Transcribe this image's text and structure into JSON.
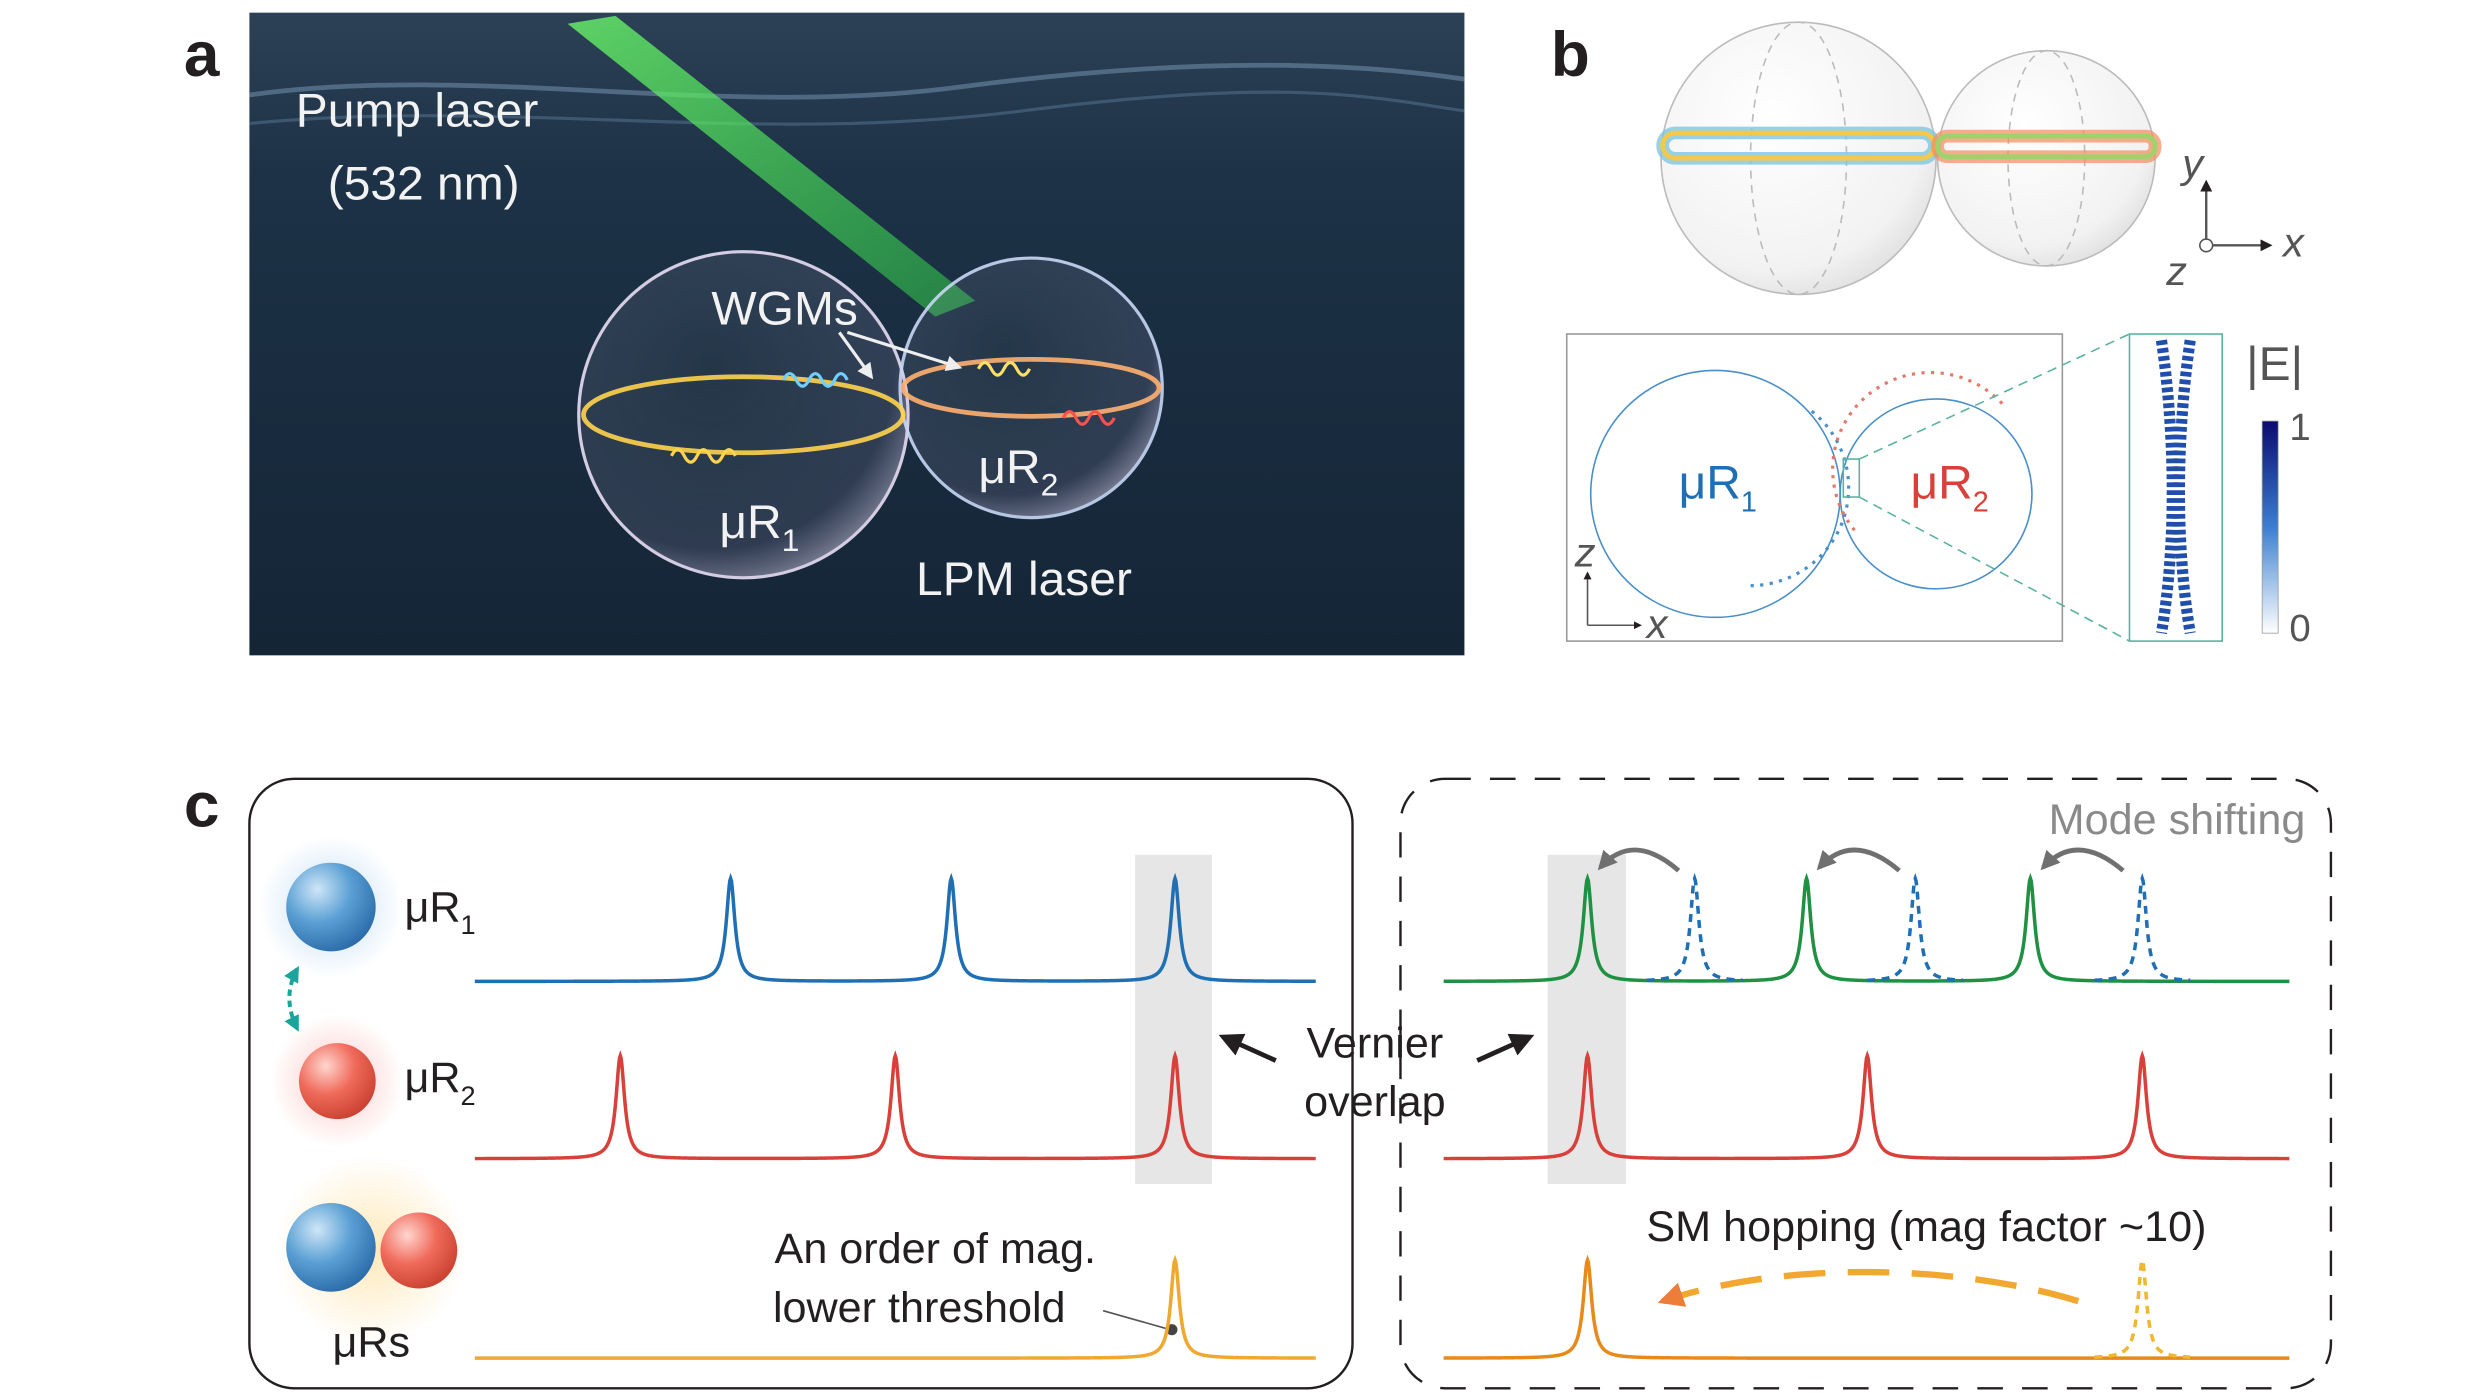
{
  "panel_a": {
    "label": "a",
    "pump_laser": "Pump laser",
    "wavelength": "(532 nm)",
    "wgms": "WGMs",
    "resonator_1": {
      "base": "μR",
      "sub": "1"
    },
    "resonator_2": {
      "base": "μR",
      "sub": "2"
    },
    "lpm_laser": "LPM laser"
  },
  "panel_b": {
    "label": "b",
    "axes": {
      "y": "y",
      "x": "x",
      "z": "z"
    },
    "resonator_1": {
      "base": "μR",
      "sub": "1"
    },
    "resonator_2": {
      "base": "μR",
      "sub": "2"
    },
    "inset_axes": {
      "z": "z",
      "x": "x"
    },
    "colorbar": {
      "title": "|E|",
      "max": "1",
      "min": "0"
    }
  },
  "panel_c": {
    "label": "c",
    "rows": [
      {
        "base": "μR",
        "sub": "1"
      },
      {
        "base": "μR",
        "sub": "2"
      },
      {
        "base": "μRs"
      }
    ],
    "vernier": [
      "Vernier",
      "overlap"
    ],
    "threshold": [
      "An order of mag.",
      "lower threshold"
    ],
    "mode_shifting": "Mode shifting",
    "sm_hopping": "SM hopping (mag factor ~10)"
  }
}
